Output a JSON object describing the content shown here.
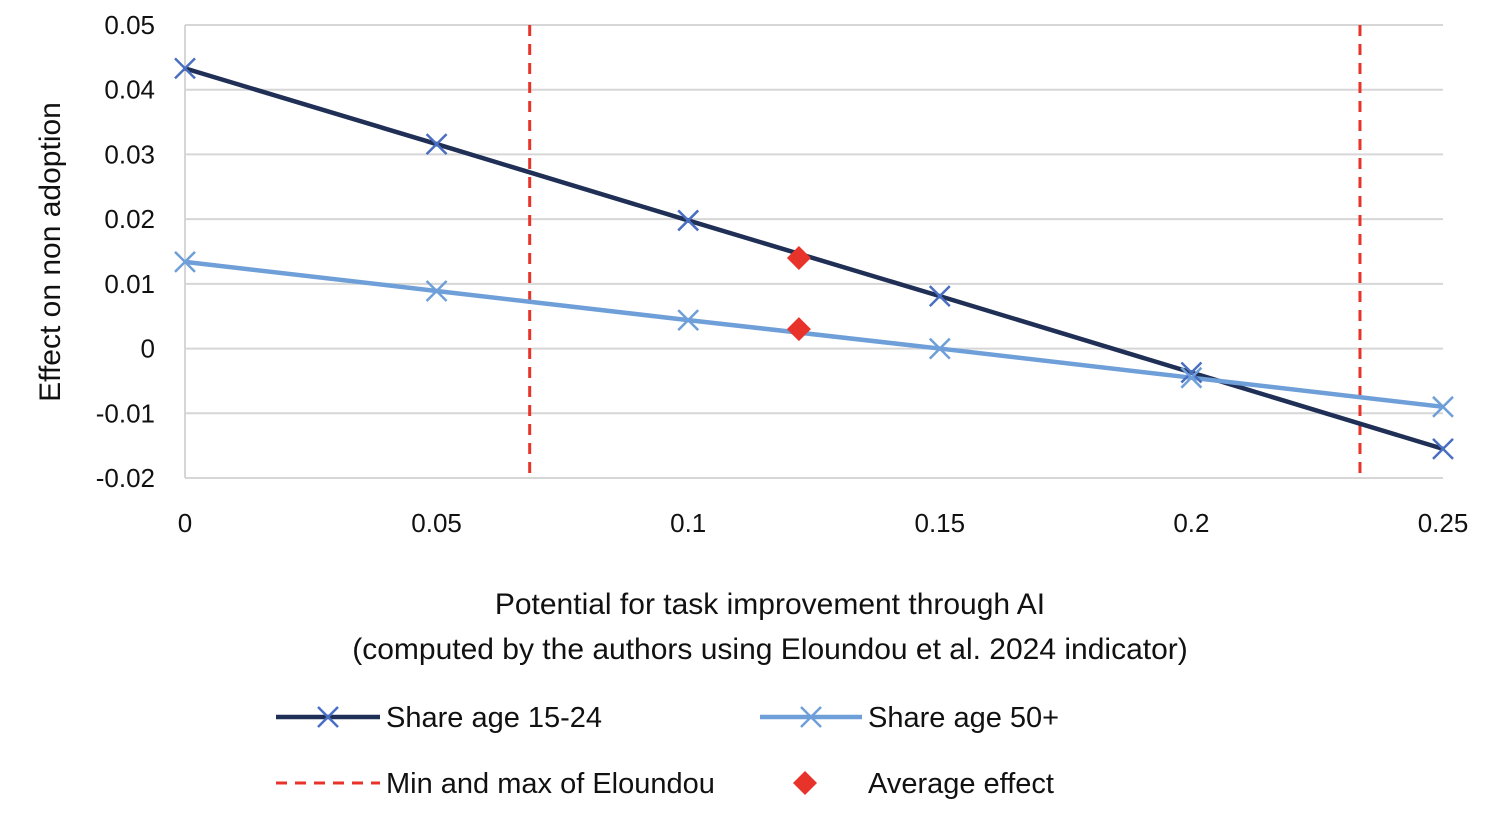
{
  "chart_data": {
    "type": "line",
    "title": "",
    "xlabel_lines": [
      "Potential for task improvement through AI",
      "(computed by the authors using Eloundou et al. 2024 indicator)"
    ],
    "ylabel": "Effect on non adoption",
    "xlim": [
      0,
      0.25
    ],
    "ylim": [
      -0.02,
      0.05
    ],
    "x_ticks": [
      {
        "value": 0,
        "label": "0"
      },
      {
        "value": 0.05,
        "label": "0.05"
      },
      {
        "value": 0.1,
        "label": "0.1"
      },
      {
        "value": 0.15,
        "label": "0.15"
      },
      {
        "value": 0.2,
        "label": "0.2"
      },
      {
        "value": 0.25,
        "label": "0.25"
      }
    ],
    "y_ticks": [
      {
        "value": 0.05,
        "label": "0.05"
      },
      {
        "value": 0.04,
        "label": "0.04"
      },
      {
        "value": 0.03,
        "label": "0.03"
      },
      {
        "value": 0.02,
        "label": "0.02"
      },
      {
        "value": 0.01,
        "label": "0.01"
      },
      {
        "value": 0,
        "label": "0"
      },
      {
        "value": -0.01,
        "label": "-0.01"
      },
      {
        "value": -0.02,
        "label": "-0.02"
      }
    ],
    "grid": "horizontal",
    "series": [
      {
        "name": "Share age 15-24",
        "color": "#1f2f55",
        "marker": "x",
        "marker_color": "#4a6fc2",
        "x": [
          0,
          0.05,
          0.1,
          0.15,
          0.2,
          0.25
        ],
        "y": [
          0.0433,
          0.0316,
          0.0198,
          0.0081,
          -0.0037,
          -0.0155
        ]
      },
      {
        "name": "Share age 50+",
        "color": "#6f9fd8",
        "marker": "x",
        "marker_color": "#6f9fd8",
        "x": [
          0,
          0.05,
          0.1,
          0.15,
          0.2,
          0.25
        ],
        "y": [
          0.0134,
          0.0089,
          0.0044,
          0.0,
          -0.0045,
          -0.009
        ]
      }
    ],
    "reference_lines": {
      "name": "Min and max of Eloundou",
      "color": "#e8332a",
      "style": "dashed",
      "x": [
        0.0685,
        0.2335
      ]
    },
    "highlight_points": {
      "name": "Average effect",
      "color": "#e8332a",
      "marker": "diamond",
      "points": [
        {
          "x": 0.122,
          "y": 0.014
        },
        {
          "x": 0.122,
          "y": 0.003
        }
      ]
    },
    "legend": {
      "position": "bottom",
      "entries": [
        {
          "label": "Share age 15-24",
          "kind": "line-x",
          "color": "#1f2f55",
          "marker_color": "#4a6fc2"
        },
        {
          "label": "Share age 50+",
          "kind": "line-x",
          "color": "#6f9fd8",
          "marker_color": "#6f9fd8"
        },
        {
          "label": "Min and max of Eloundou",
          "kind": "dashed",
          "color": "#e8332a"
        },
        {
          "label": "Average effect",
          "kind": "diamond",
          "color": "#e8332a"
        }
      ]
    }
  }
}
